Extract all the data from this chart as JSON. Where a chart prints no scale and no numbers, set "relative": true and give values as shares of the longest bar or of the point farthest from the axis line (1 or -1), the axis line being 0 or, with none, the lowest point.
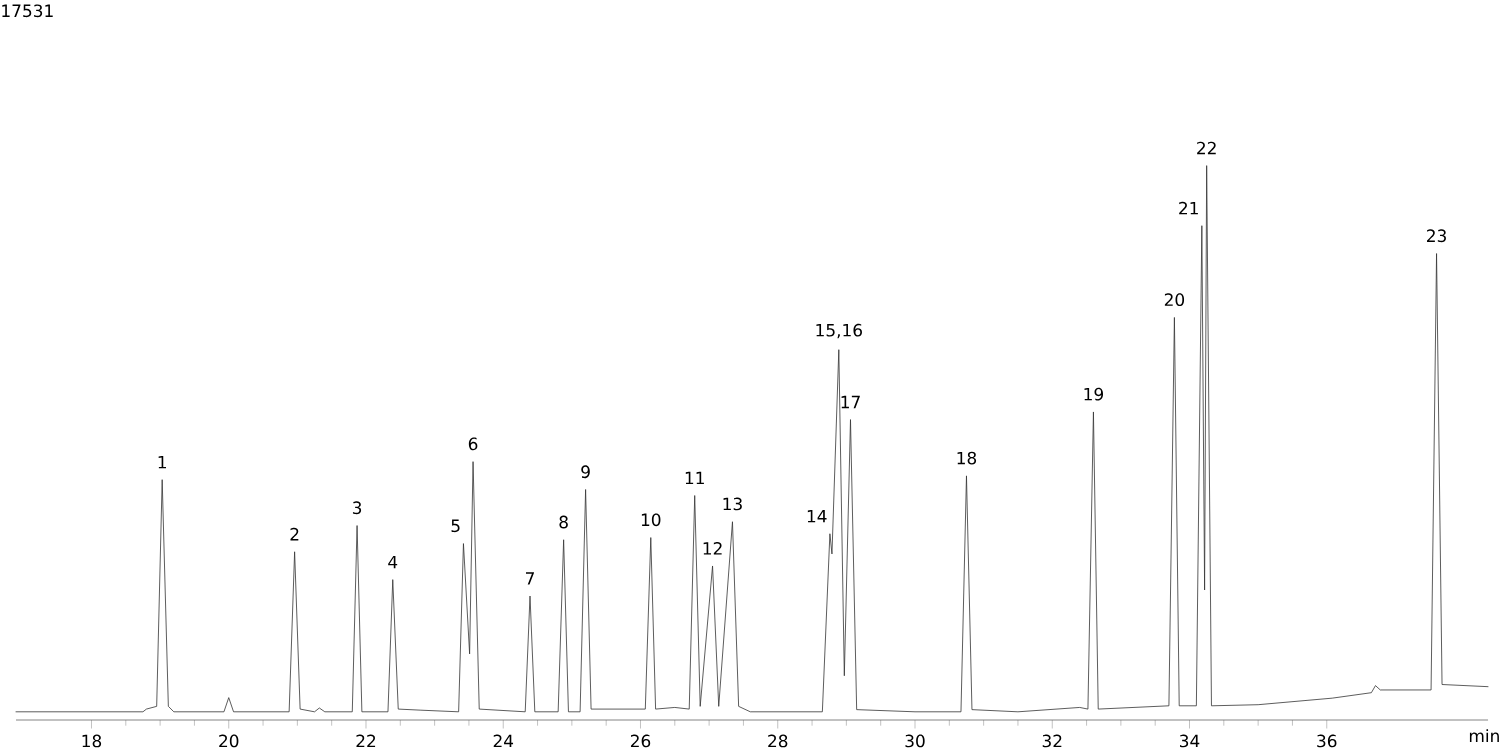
{
  "chart_data": {
    "type": "line",
    "relative": true,
    "xlabel": "min",
    "tick_labels": "x",
    "grid": false,
    "marker": "none",
    "line_style": "solid",
    "xlim": [
      16.9,
      38.35
    ],
    "xticks": [
      18,
      20,
      22,
      24,
      26,
      28,
      30,
      32,
      34,
      36
    ],
    "series": [
      {
        "color": "#333333",
        "x": [
          16.9,
          18.75,
          18.8,
          18.95,
          19.03,
          19.12,
          19.2,
          19.93,
          20.0,
          20.07,
          20.88,
          20.96,
          21.04,
          21.25,
          21.32,
          21.4,
          21.8,
          21.87,
          21.94,
          22.32,
          22.39,
          22.47,
          22.8,
          23.35,
          23.42,
          23.51,
          23.56,
          23.65,
          24.32,
          24.39,
          24.46,
          24.8,
          24.88,
          24.95,
          25.12,
          25.2,
          25.28,
          26.07,
          26.15,
          26.22,
          26.5,
          26.71,
          26.79,
          26.87,
          27.05,
          27.14,
          27.34,
          27.43,
          27.6,
          28.65,
          28.76,
          28.79,
          28.89,
          28.97,
          29.06,
          29.15,
          30.0,
          30.67,
          30.75,
          30.83,
          31.5,
          32.4,
          32.52,
          32.6,
          32.67,
          33.7,
          33.78,
          33.85,
          34.1,
          34.18,
          34.22,
          34.25,
          34.32,
          35.0,
          36.08,
          36.65,
          36.71,
          36.78,
          37.52,
          37.6,
          37.68,
          38.35
        ],
        "values": [
          0,
          0,
          0.005,
          0.01,
          0.425,
          0.01,
          0,
          0,
          0.026,
          0,
          0,
          0.293,
          0.005,
          0,
          0.007,
          0,
          0,
          0.341,
          0,
          0,
          0.242,
          0.005,
          0.003,
          0,
          0.308,
          0.106,
          0.458,
          0.005,
          0,
          0.212,
          0,
          0,
          0.315,
          0,
          0,
          0.407,
          0.005,
          0.005,
          0.319,
          0.005,
          0.008,
          0.005,
          0.396,
          0.01,
          0.267,
          0.01,
          0.348,
          0.01,
          0,
          0,
          0.326,
          0.289,
          0.663,
          0.066,
          0.535,
          0.004,
          0,
          0,
          0.432,
          0.004,
          0,
          0.008,
          0.005,
          0.549,
          0.005,
          0.011,
          0.722,
          0.011,
          0.011,
          0.89,
          0.223,
          1,
          0.011,
          0.013,
          0.025,
          0.035,
          0.048,
          0.04,
          0.04,
          0.839,
          0.05,
          0.046
        ]
      }
    ],
    "annotations": [
      "17531",
      {
        "text": "1",
        "x": 19.03,
        "y": 0.425
      },
      {
        "text": "2",
        "x": 20.96,
        "y": 0.293
      },
      {
        "text": "3",
        "x": 21.87,
        "y": 0.341
      },
      {
        "text": "4",
        "x": 22.39,
        "y": 0.242
      },
      {
        "text": "5",
        "x": 23.42,
        "y": 0.308
      },
      {
        "text": "6",
        "x": 23.56,
        "y": 0.458
      },
      {
        "text": "7",
        "x": 24.39,
        "y": 0.212
      },
      {
        "text": "8",
        "x": 24.88,
        "y": 0.315
      },
      {
        "text": "9",
        "x": 25.2,
        "y": 0.407
      },
      {
        "text": "10",
        "x": 26.15,
        "y": 0.319
      },
      {
        "text": "11",
        "x": 26.79,
        "y": 0.396
      },
      {
        "text": "12",
        "x": 27.05,
        "y": 0.267
      },
      {
        "text": "13",
        "x": 27.34,
        "y": 0.348
      },
      {
        "text": "14",
        "x": 28.76,
        "y": 0.326
      },
      {
        "text": "15,16",
        "x": 28.89,
        "y": 0.663
      },
      {
        "text": "17",
        "x": 29.06,
        "y": 0.535
      },
      {
        "text": "18",
        "x": 30.75,
        "y": 0.432
      },
      {
        "text": "19",
        "x": 32.6,
        "y": 0.549
      },
      {
        "text": "20",
        "x": 33.78,
        "y": 0.722
      },
      {
        "text": "21",
        "x": 34.18,
        "y": 0.89
      },
      {
        "text": "22",
        "x": 34.25,
        "y": 1
      },
      {
        "text": "23",
        "x": 37.6,
        "y": 0.839
      }
    ]
  }
}
